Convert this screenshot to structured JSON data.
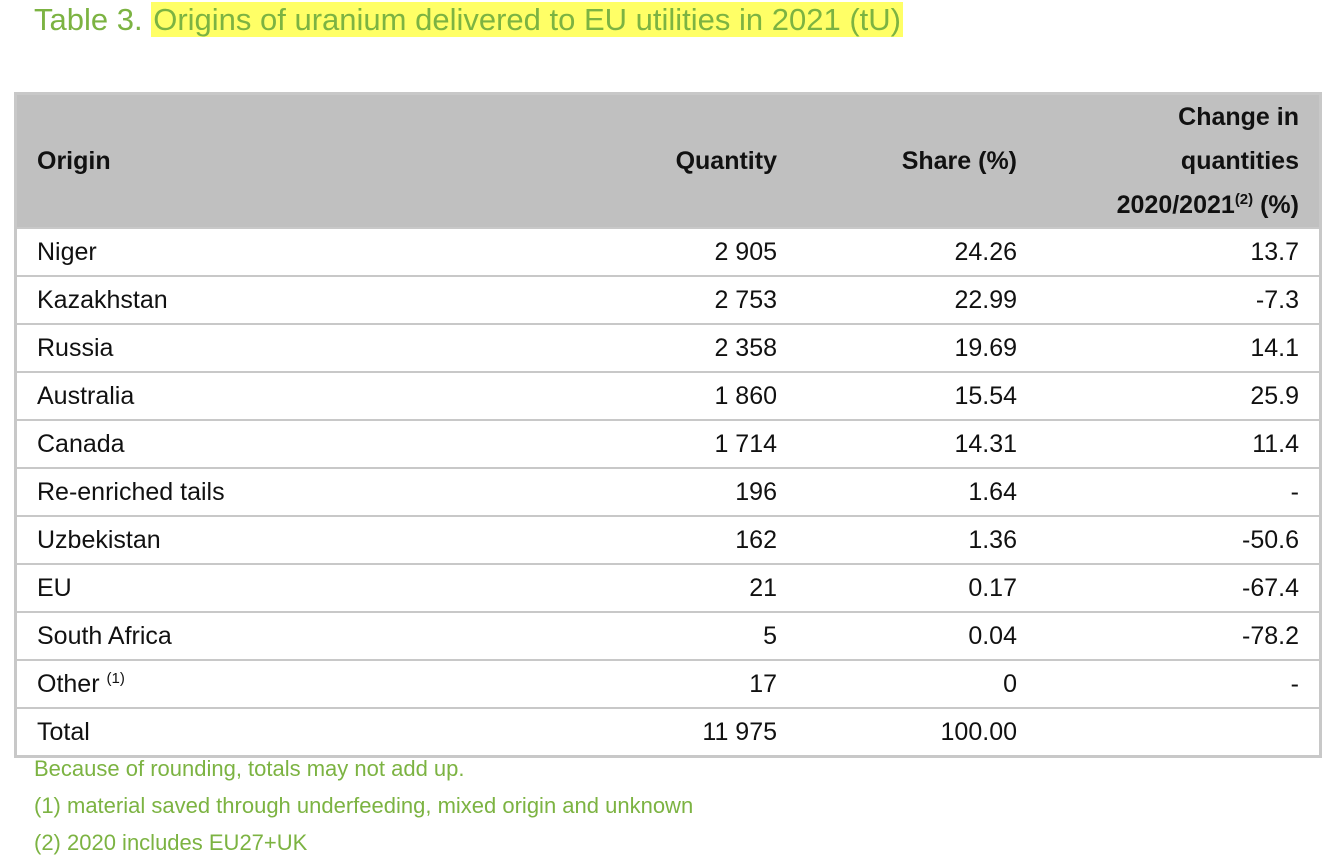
{
  "title": {
    "label": "Table 3.",
    "text": "Origins of uranium delivered to EU utilities in 2021 (tU)"
  },
  "table": {
    "header": [
      "Origin",
      "Quantity",
      "Share (%)",
      {
        "text": "Change in quantities 2020/2021",
        "sup": "(2)",
        "after": "(%)"
      }
    ],
    "rows": [
      [
        "Niger",
        "2 905",
        "24.26",
        "13.7"
      ],
      [
        "Kazakhstan",
        "2 753",
        "22.99",
        "-7.3"
      ],
      [
        "Russia",
        "2 358",
        "19.69",
        "14.1"
      ],
      [
        "Australia",
        "1 860",
        "15.54",
        "25.9"
      ],
      [
        "Canada",
        "1 714",
        "14.31",
        "11.4"
      ],
      [
        "Re-enriched tails",
        "196",
        "1.64",
        "-"
      ],
      [
        "Uzbekistan",
        "162",
        "1.36",
        "-50.6"
      ],
      [
        "EU",
        "21",
        "0.17",
        "-67.4"
      ],
      [
        "South Africa",
        "5",
        "0.04",
        "-78.2"
      ],
      [
        {
          "text": "Other",
          "sup": "(1)"
        },
        "17",
        "0",
        "-"
      ],
      [
        "Total",
        "11 975",
        "100.00",
        null
      ]
    ]
  },
  "notes": [
    "Because of rounding, totals may not add up.",
    "(1) material saved through underfeeding, mixed origin and unknown",
    "(2) 2020 includes EU27+UK"
  ]
}
